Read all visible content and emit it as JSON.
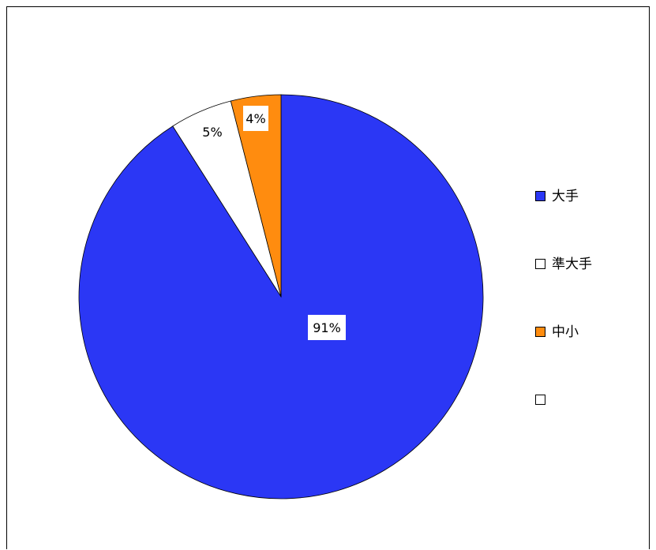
{
  "chart_data": {
    "type": "pie",
    "categories": [
      "大手",
      "準大手",
      "中小",
      ""
    ],
    "values": [
      91,
      5,
      4,
      0
    ],
    "data_labels": [
      "91%",
      "5%",
      "4%",
      ""
    ],
    "colors": [
      "#2b37f5",
      "#ffffff",
      "#ff8c0f",
      "#ffffff"
    ],
    "start_angle_deg": 0,
    "direction": "clockwise",
    "legend_position": "right"
  }
}
